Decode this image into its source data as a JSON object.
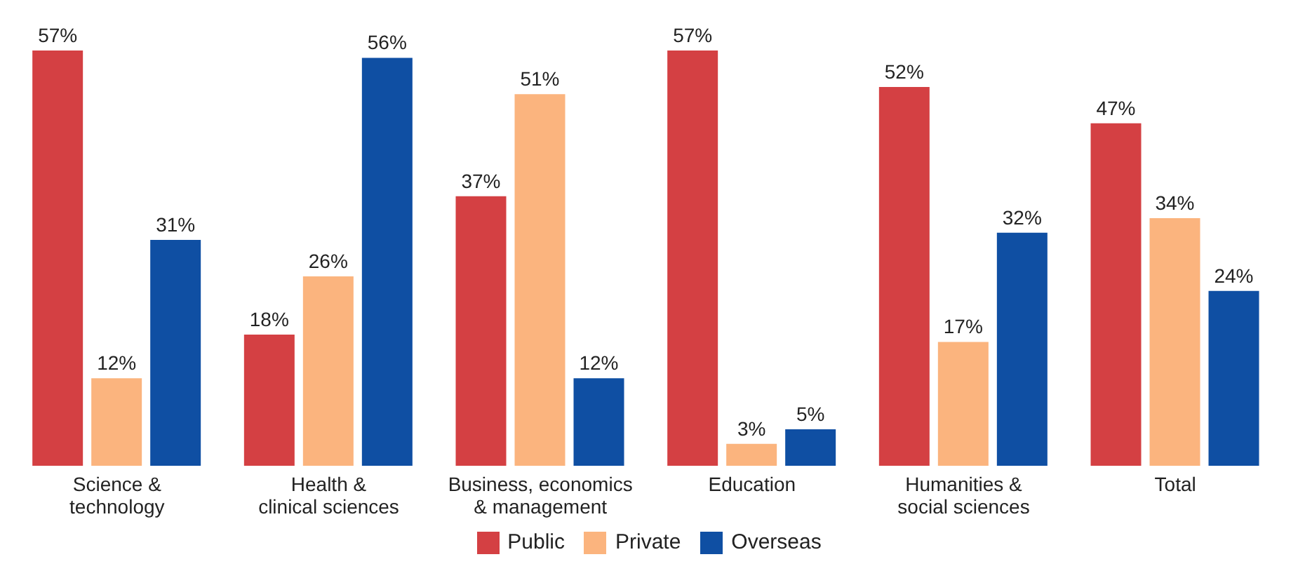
{
  "chart_data": {
    "type": "bar",
    "categories": [
      "Science & technology",
      "Health & clinical sciences",
      "Business, economics & management",
      "Education",
      "Humanities & social sciences",
      "Total"
    ],
    "series": [
      {
        "name": "Public",
        "color": "#d44043",
        "values": [
          57,
          18,
          37,
          57,
          52,
          47
        ],
        "value_labels": [
          "57%",
          "18%",
          "37%",
          "57%",
          "52%",
          "47%"
        ]
      },
      {
        "name": "Private",
        "color": "#fbb47e",
        "values": [
          12,
          26,
          51,
          3,
          17,
          34
        ],
        "value_labels": [
          "12%",
          "26%",
          "51%",
          "3%",
          "17%",
          "34%"
        ]
      },
      {
        "name": "Overseas",
        "color": "#0f4fa3",
        "values": [
          31,
          56,
          12,
          5,
          32,
          24
        ],
        "value_labels": [
          "31%",
          "56%",
          "12%",
          "5%",
          "32%",
          "24%"
        ]
      }
    ],
    "legend": "bottom"
  }
}
